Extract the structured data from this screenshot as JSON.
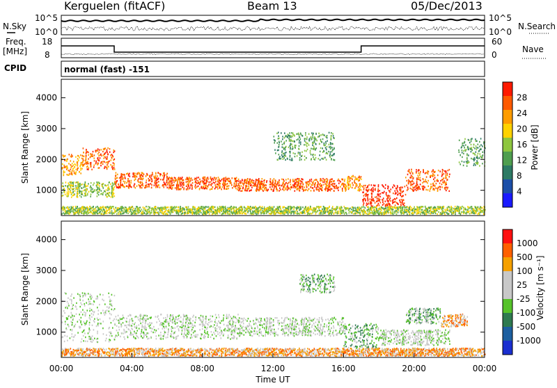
{
  "header": {
    "station": "Kerguelen (fitACF)",
    "beam": "Beam 13",
    "date": "05/Dec/2013"
  },
  "noise_panel": {
    "left_label": "N.Sky",
    "right_label": "N.Search",
    "left_ticks": [
      "10^5",
      "10^0"
    ],
    "right_ticks": [
      "10^5",
      "10^0"
    ]
  },
  "freq_panel": {
    "left_label_1": "Freq.",
    "left_label_2": "[MHz]",
    "right_label": "Nave",
    "left_ticks": [
      "18",
      "8"
    ],
    "right_ticks": [
      "60",
      "0"
    ]
  },
  "cpid": {
    "label": "CPID",
    "mode_text": "normal (fast) -151"
  },
  "colors": {
    "power_scale": [
      "#1a1aff",
      "#1c4fa8",
      "#2d7a64",
      "#4f9e4f",
      "#8ec63f",
      "#ffd200",
      "#ff9c00",
      "#ff5a00",
      "#ff1a00"
    ],
    "velocity_scale": [
      "#1a2fd0",
      "#1d5fa0",
      "#2e7a50",
      "#56c32a",
      "#c8c8c8",
      "#c8c8c8",
      "#f5a000",
      "#ff6000",
      "#ff1010"
    ]
  },
  "chart_data": [
    {
      "type": "heatmap",
      "name": "power",
      "xlabel": "",
      "ylabel": "Slant Range [km]",
      "xlim": [
        "00:00",
        "24:00"
      ],
      "ylim": [
        180,
        4600
      ],
      "yticks": [
        "4000",
        "3000",
        "2000",
        "1000"
      ],
      "colorbar_label": "Power [dB]",
      "colorbar_ticks": [
        "28",
        "24",
        "20",
        "16",
        "12",
        "8",
        "4"
      ],
      "bands": [
        {
          "t0": 0.0,
          "t1": 1.2,
          "r0": 1500,
          "r1": 2200,
          "level": 6
        },
        {
          "t0": 1.2,
          "t1": 3.0,
          "r0": 1700,
          "r1": 2400,
          "level": 7
        },
        {
          "t0": 3.0,
          "t1": 6.0,
          "r0": 1100,
          "r1": 1600,
          "level": 7
        },
        {
          "t0": 6.0,
          "t1": 10.0,
          "r0": 1050,
          "r1": 1450,
          "level": 7
        },
        {
          "t0": 10.0,
          "t1": 16.0,
          "r0": 1000,
          "r1": 1400,
          "level": 7
        },
        {
          "t0": 16.0,
          "t1": 17.0,
          "r0": 1000,
          "r1": 1500,
          "level": 6
        },
        {
          "t0": 17.0,
          "t1": 19.5,
          "r0": 500,
          "r1": 1200,
          "level": 8
        },
        {
          "t0": 19.5,
          "t1": 22.0,
          "r0": 1000,
          "r1": 1700,
          "level": 7
        },
        {
          "t0": 12.0,
          "t1": 15.5,
          "r0": 2000,
          "r1": 2900,
          "level": 3
        },
        {
          "t0": 0.0,
          "t1": 3.0,
          "r0": 800,
          "r1": 1300,
          "level": 4
        },
        {
          "t0": 22.5,
          "t1": 24.0,
          "r0": 1800,
          "r1": 2700,
          "level": 3
        },
        {
          "t0": 0.0,
          "t1": 24.0,
          "r0": 250,
          "r1": 500,
          "level": 4
        }
      ]
    },
    {
      "type": "heatmap",
      "name": "velocity",
      "xlabel": "Time UT",
      "ylabel": "Slant Range [km]",
      "xlim": [
        "00:00",
        "24:00"
      ],
      "ylim": [
        180,
        4600
      ],
      "xticks": [
        "00:00",
        "04:00",
        "08:00",
        "12:00",
        "16:00",
        "20:00",
        "00:00"
      ],
      "yticks": [
        "4000",
        "3000",
        "2000",
        "1000"
      ],
      "colorbar_label": "Velocity [m s⁻¹]",
      "colorbar_ticks": [
        "1000",
        "500",
        "100",
        "25",
        "-25",
        "-100",
        "-500",
        "-1000"
      ],
      "bands": [
        {
          "t0": 0.0,
          "t1": 3.0,
          "r0": 700,
          "r1": 2300,
          "level": 4
        },
        {
          "t0": 3.0,
          "t1": 10.0,
          "r0": 800,
          "r1": 1600,
          "level": 4
        },
        {
          "t0": 10.0,
          "t1": 16.0,
          "r0": 900,
          "r1": 1500,
          "level": 4
        },
        {
          "t0": 16.0,
          "t1": 18.0,
          "r0": 500,
          "r1": 1300,
          "level": 3
        },
        {
          "t0": 18.0,
          "t1": 22.0,
          "r0": 600,
          "r1": 1100,
          "level": 4
        },
        {
          "t0": 13.5,
          "t1": 15.5,
          "r0": 2300,
          "r1": 2900,
          "level": 3
        },
        {
          "t0": 19.5,
          "t1": 21.5,
          "r0": 1300,
          "r1": 1800,
          "level": 3
        },
        {
          "t0": 21.5,
          "t1": 23.0,
          "r0": 1200,
          "r1": 1600,
          "level": 6
        },
        {
          "t0": 0.0,
          "t1": 24.0,
          "r0": 250,
          "r1": 500,
          "level": 6
        }
      ]
    }
  ]
}
